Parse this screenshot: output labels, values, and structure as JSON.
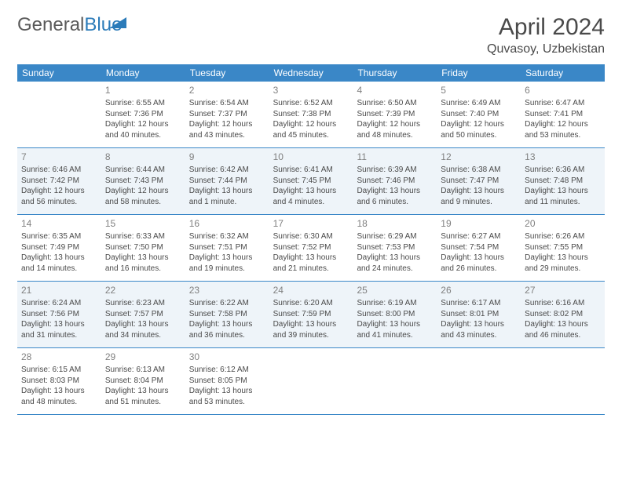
{
  "logo": {
    "text1": "General",
    "text2": "Blue"
  },
  "title": {
    "month": "April 2024",
    "location": "Quvasoy, Uzbekistan"
  },
  "colors": {
    "header_bg": "#3a87c7",
    "header_text": "#ffffff",
    "shaded_bg": "#eef4f9",
    "border": "#3a87c7",
    "body_text": "#4a4a4a",
    "daynum_text": "#808080",
    "logo_gray": "#5a5a5a",
    "logo_blue": "#2b7bb9"
  },
  "day_headers": [
    "Sunday",
    "Monday",
    "Tuesday",
    "Wednesday",
    "Thursday",
    "Friday",
    "Saturday"
  ],
  "weeks": [
    {
      "shaded": false,
      "cells": [
        {
          "blank": true
        },
        {
          "num": "1",
          "sunrise": "Sunrise: 6:55 AM",
          "sunset": "Sunset: 7:36 PM",
          "day1": "Daylight: 12 hours",
          "day2": "and 40 minutes."
        },
        {
          "num": "2",
          "sunrise": "Sunrise: 6:54 AM",
          "sunset": "Sunset: 7:37 PM",
          "day1": "Daylight: 12 hours",
          "day2": "and 43 minutes."
        },
        {
          "num": "3",
          "sunrise": "Sunrise: 6:52 AM",
          "sunset": "Sunset: 7:38 PM",
          "day1": "Daylight: 12 hours",
          "day2": "and 45 minutes."
        },
        {
          "num": "4",
          "sunrise": "Sunrise: 6:50 AM",
          "sunset": "Sunset: 7:39 PM",
          "day1": "Daylight: 12 hours",
          "day2": "and 48 minutes."
        },
        {
          "num": "5",
          "sunrise": "Sunrise: 6:49 AM",
          "sunset": "Sunset: 7:40 PM",
          "day1": "Daylight: 12 hours",
          "day2": "and 50 minutes."
        },
        {
          "num": "6",
          "sunrise": "Sunrise: 6:47 AM",
          "sunset": "Sunset: 7:41 PM",
          "day1": "Daylight: 12 hours",
          "day2": "and 53 minutes."
        }
      ]
    },
    {
      "shaded": true,
      "cells": [
        {
          "num": "7",
          "sunrise": "Sunrise: 6:46 AM",
          "sunset": "Sunset: 7:42 PM",
          "day1": "Daylight: 12 hours",
          "day2": "and 56 minutes."
        },
        {
          "num": "8",
          "sunrise": "Sunrise: 6:44 AM",
          "sunset": "Sunset: 7:43 PM",
          "day1": "Daylight: 12 hours",
          "day2": "and 58 minutes."
        },
        {
          "num": "9",
          "sunrise": "Sunrise: 6:42 AM",
          "sunset": "Sunset: 7:44 PM",
          "day1": "Daylight: 13 hours",
          "day2": "and 1 minute."
        },
        {
          "num": "10",
          "sunrise": "Sunrise: 6:41 AM",
          "sunset": "Sunset: 7:45 PM",
          "day1": "Daylight: 13 hours",
          "day2": "and 4 minutes."
        },
        {
          "num": "11",
          "sunrise": "Sunrise: 6:39 AM",
          "sunset": "Sunset: 7:46 PM",
          "day1": "Daylight: 13 hours",
          "day2": "and 6 minutes."
        },
        {
          "num": "12",
          "sunrise": "Sunrise: 6:38 AM",
          "sunset": "Sunset: 7:47 PM",
          "day1": "Daylight: 13 hours",
          "day2": "and 9 minutes."
        },
        {
          "num": "13",
          "sunrise": "Sunrise: 6:36 AM",
          "sunset": "Sunset: 7:48 PM",
          "day1": "Daylight: 13 hours",
          "day2": "and 11 minutes."
        }
      ]
    },
    {
      "shaded": false,
      "cells": [
        {
          "num": "14",
          "sunrise": "Sunrise: 6:35 AM",
          "sunset": "Sunset: 7:49 PM",
          "day1": "Daylight: 13 hours",
          "day2": "and 14 minutes."
        },
        {
          "num": "15",
          "sunrise": "Sunrise: 6:33 AM",
          "sunset": "Sunset: 7:50 PM",
          "day1": "Daylight: 13 hours",
          "day2": "and 16 minutes."
        },
        {
          "num": "16",
          "sunrise": "Sunrise: 6:32 AM",
          "sunset": "Sunset: 7:51 PM",
          "day1": "Daylight: 13 hours",
          "day2": "and 19 minutes."
        },
        {
          "num": "17",
          "sunrise": "Sunrise: 6:30 AM",
          "sunset": "Sunset: 7:52 PM",
          "day1": "Daylight: 13 hours",
          "day2": "and 21 minutes."
        },
        {
          "num": "18",
          "sunrise": "Sunrise: 6:29 AM",
          "sunset": "Sunset: 7:53 PM",
          "day1": "Daylight: 13 hours",
          "day2": "and 24 minutes."
        },
        {
          "num": "19",
          "sunrise": "Sunrise: 6:27 AM",
          "sunset": "Sunset: 7:54 PM",
          "day1": "Daylight: 13 hours",
          "day2": "and 26 minutes."
        },
        {
          "num": "20",
          "sunrise": "Sunrise: 6:26 AM",
          "sunset": "Sunset: 7:55 PM",
          "day1": "Daylight: 13 hours",
          "day2": "and 29 minutes."
        }
      ]
    },
    {
      "shaded": true,
      "cells": [
        {
          "num": "21",
          "sunrise": "Sunrise: 6:24 AM",
          "sunset": "Sunset: 7:56 PM",
          "day1": "Daylight: 13 hours",
          "day2": "and 31 minutes."
        },
        {
          "num": "22",
          "sunrise": "Sunrise: 6:23 AM",
          "sunset": "Sunset: 7:57 PM",
          "day1": "Daylight: 13 hours",
          "day2": "and 34 minutes."
        },
        {
          "num": "23",
          "sunrise": "Sunrise: 6:22 AM",
          "sunset": "Sunset: 7:58 PM",
          "day1": "Daylight: 13 hours",
          "day2": "and 36 minutes."
        },
        {
          "num": "24",
          "sunrise": "Sunrise: 6:20 AM",
          "sunset": "Sunset: 7:59 PM",
          "day1": "Daylight: 13 hours",
          "day2": "and 39 minutes."
        },
        {
          "num": "25",
          "sunrise": "Sunrise: 6:19 AM",
          "sunset": "Sunset: 8:00 PM",
          "day1": "Daylight: 13 hours",
          "day2": "and 41 minutes."
        },
        {
          "num": "26",
          "sunrise": "Sunrise: 6:17 AM",
          "sunset": "Sunset: 8:01 PM",
          "day1": "Daylight: 13 hours",
          "day2": "and 43 minutes."
        },
        {
          "num": "27",
          "sunrise": "Sunrise: 6:16 AM",
          "sunset": "Sunset: 8:02 PM",
          "day1": "Daylight: 13 hours",
          "day2": "and 46 minutes."
        }
      ]
    },
    {
      "shaded": false,
      "cells": [
        {
          "num": "28",
          "sunrise": "Sunrise: 6:15 AM",
          "sunset": "Sunset: 8:03 PM",
          "day1": "Daylight: 13 hours",
          "day2": "and 48 minutes."
        },
        {
          "num": "29",
          "sunrise": "Sunrise: 6:13 AM",
          "sunset": "Sunset: 8:04 PM",
          "day1": "Daylight: 13 hours",
          "day2": "and 51 minutes."
        },
        {
          "num": "30",
          "sunrise": "Sunrise: 6:12 AM",
          "sunset": "Sunset: 8:05 PM",
          "day1": "Daylight: 13 hours",
          "day2": "and 53 minutes."
        },
        {
          "blank": true
        },
        {
          "blank": true
        },
        {
          "blank": true
        },
        {
          "blank": true
        }
      ]
    }
  ]
}
